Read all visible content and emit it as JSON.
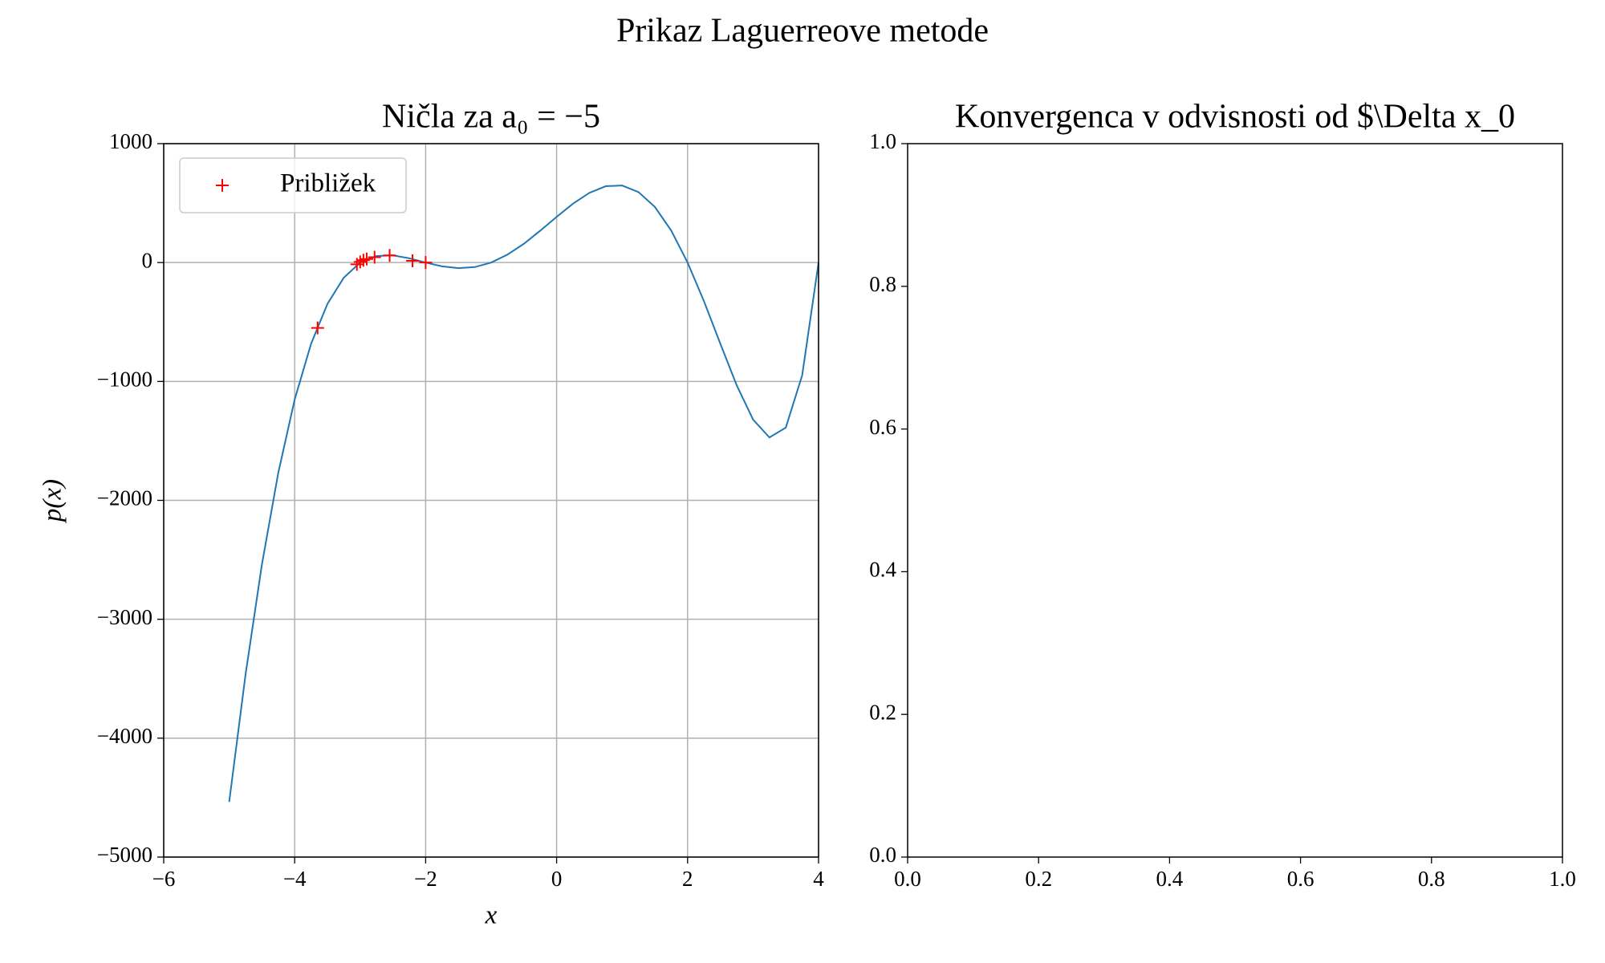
{
  "title": "Prikaz Laguerreove metode",
  "chart_data": [
    {
      "type": "line",
      "title": "Ničla za a₀ = −5",
      "xlabel": "x",
      "ylabel": "p(x)",
      "x": [
        -5,
        -4.75,
        -4.5,
        -4.25,
        -4,
        -3.75,
        -3.5,
        -3.25,
        -3,
        -2.75,
        -2.5,
        -2.25,
        -2,
        -1.75,
        -1.5,
        -1.25,
        -1,
        -0.75,
        -0.5,
        -0.25,
        0,
        0.25,
        0.5,
        0.75,
        1,
        1.25,
        1.5,
        1.75,
        2,
        2.25,
        2.5,
        2.75,
        3,
        3.25,
        3.5,
        3.75,
        4
      ],
      "values": [
        -4536,
        -3464,
        -2538,
        -1767,
        -1152,
        -684,
        -348,
        -127,
        0,
        55,
        60,
        36,
        0,
        -32,
        -47,
        -38,
        0,
        67,
        158,
        268,
        384,
        495,
        586,
        642,
        648,
        593,
        468,
        269,
        0,
        -325,
        -682,
        -1032,
        -1320,
        -1471,
        -1388,
        -948,
        0
      ],
      "color": "#1f77b4",
      "scatter": {
        "name": "Približek",
        "color": "#ff0000",
        "x": [
          -3.65,
          -2.55,
          -2.78,
          -2.9,
          -2.95,
          -3.0,
          -3.05,
          -2.2,
          -2.0
        ],
        "values": [
          -550,
          60,
          45,
          30,
          20,
          5,
          -15,
          15,
          0
        ]
      },
      "xlim": [
        -6,
        4
      ],
      "ylim": [
        -5000,
        1000
      ],
      "xticks": [
        {
          "value": -6,
          "label": "−6"
        },
        {
          "value": -4,
          "label": "−4"
        },
        {
          "value": -2,
          "label": "−2"
        },
        0,
        2,
        4
      ],
      "yticks": [
        {
          "value": -5000,
          "label": "−5000"
        },
        {
          "value": -4000,
          "label": "−4000"
        },
        {
          "value": -3000,
          "label": "−3000"
        },
        {
          "value": -2000,
          "label": "−2000"
        },
        {
          "value": -1000,
          "label": "−1000"
        },
        0,
        1000
      ],
      "grid": true,
      "legend": "upper left"
    },
    {
      "type": "empty",
      "title": "Konvergenca v odvisnosti od $\\Delta x_0",
      "xlim": [
        0,
        1
      ],
      "ylim": [
        0,
        1
      ],
      "xticks": [
        {
          "value": 0,
          "label": "0.0"
        },
        0.2,
        0.4,
        0.6,
        0.8,
        {
          "value": 1,
          "label": "1.0"
        }
      ],
      "yticks": [
        {
          "value": 0,
          "label": "0.0"
        },
        0.2,
        0.4,
        0.6,
        0.8,
        {
          "value": 1,
          "label": "1.0"
        }
      ],
      "grid": false
    }
  ]
}
